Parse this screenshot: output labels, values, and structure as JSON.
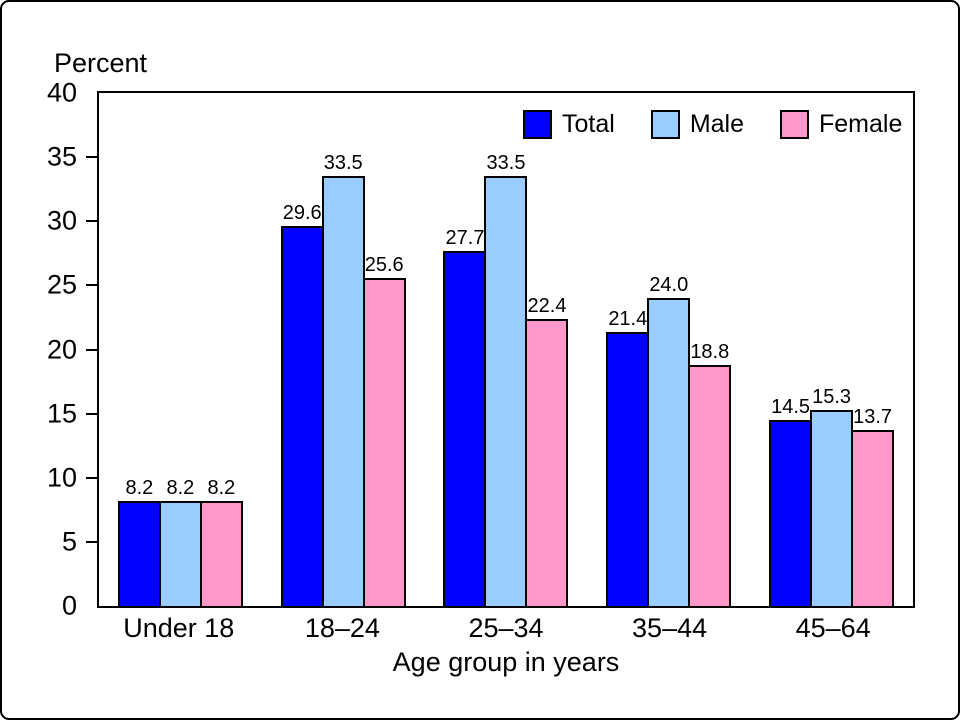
{
  "labels": {
    "y_unit": "Percent",
    "x_axis_title": "Age group in years"
  },
  "chart_data": {
    "type": "bar",
    "title": "",
    "ylabel": "Percent",
    "xlabel": "Age group in years",
    "categories": [
      "Under 18",
      "18–24",
      "25–34",
      "35–44",
      "45–64"
    ],
    "series": [
      {
        "name": "Total",
        "color": "#0000FE",
        "values": [
          8.2,
          29.6,
          27.7,
          21.4,
          14.5
        ]
      },
      {
        "name": "Male",
        "color": "#99CCFF",
        "values": [
          8.2,
          33.5,
          33.5,
          24.0,
          15.3
        ]
      },
      {
        "name": "Female",
        "color": "#FF99CC",
        "values": [
          8.2,
          25.6,
          22.4,
          18.8,
          13.7
        ]
      }
    ],
    "ylim": [
      0,
      40
    ],
    "yticks": [
      0,
      5,
      10,
      15,
      20,
      25,
      30,
      35,
      40
    ],
    "tick_marks": [
      5,
      10,
      15,
      20,
      25,
      30,
      35
    ],
    "value_label_decimals": 1,
    "legend_position": "top-right-inside",
    "grid": false,
    "bar_outline_color": "#000000",
    "background": "#FFFFFF"
  }
}
